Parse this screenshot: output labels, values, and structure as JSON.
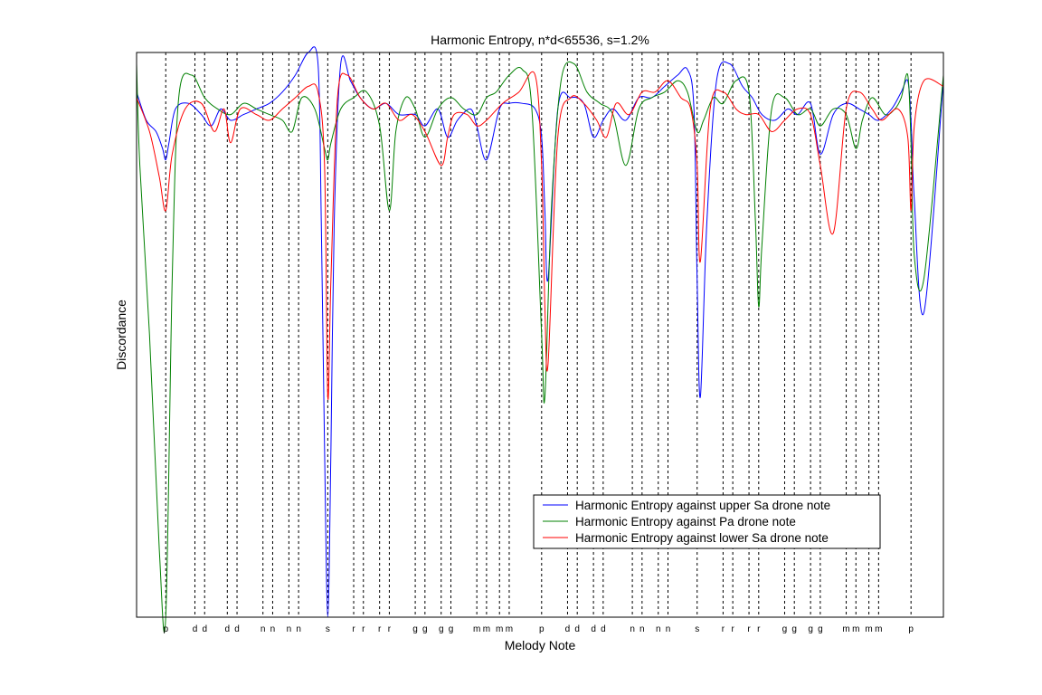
{
  "chart_data": {
    "type": "line",
    "title": "Harmonic Entropy, n*d<65536, s=1.2%",
    "xlabel": "Melody Note",
    "ylabel": "Discordance",
    "grid": "dashed vertical lines at each melody note position",
    "legend_position": "lower-right",
    "note_labels": [
      "p",
      "d",
      "d",
      "d",
      "d",
      "n",
      "n",
      "n",
      "n",
      "s",
      "r",
      "r",
      "r",
      "r",
      "g",
      "g",
      "g",
      "g",
      "m",
      "m",
      "m",
      "m",
      "p",
      "d",
      "d",
      "d",
      "d",
      "n",
      "n",
      "n",
      "n",
      "s",
      "r",
      "r",
      "r",
      "r",
      "g",
      "g",
      "g",
      "g",
      "m",
      "m",
      "m",
      "m",
      "p"
    ],
    "note_positions": [
      2.0,
      2.45,
      2.6,
      2.95,
      3.1,
      3.5,
      3.65,
      3.9,
      4.05,
      4.5,
      4.9,
      5.05,
      5.3,
      5.45,
      5.85,
      6.0,
      6.25,
      6.4,
      6.8,
      6.95,
      7.15,
      7.3,
      7.8,
      8.2,
      8.35,
      8.6,
      8.75,
      9.2,
      9.35,
      9.6,
      9.75,
      10.2,
      10.6,
      10.75,
      11.0,
      11.15,
      11.55,
      11.7,
      11.95,
      12.1,
      12.5,
      12.65,
      12.85,
      13.0,
      13.5
    ],
    "xlim": [
      1.55,
      14.0
    ],
    "ylim": [
      0,
      1
    ],
    "series": [
      {
        "name": "Harmonic Entropy against upper Sa drone note",
        "color": "#0000ff",
        "x": [
          1.55,
          1.7,
          1.85,
          1.95,
          2.0,
          2.05,
          2.15,
          2.35,
          2.55,
          2.7,
          2.85,
          3.0,
          3.2,
          3.4,
          3.6,
          3.8,
          4.0,
          4.2,
          4.35,
          4.4,
          4.45,
          4.5,
          4.55,
          4.6,
          4.7,
          4.85,
          5.0,
          5.2,
          5.4,
          5.6,
          5.85,
          6.0,
          6.2,
          6.35,
          6.5,
          6.7,
          6.8,
          6.95,
          7.15,
          7.3,
          7.5,
          7.7,
          7.8,
          7.85,
          7.9,
          8.05,
          8.25,
          8.45,
          8.6,
          8.75,
          8.9,
          9.1,
          9.3,
          9.5,
          9.7,
          9.9,
          10.05,
          10.15,
          10.2,
          10.25,
          10.35,
          10.5,
          10.7,
          10.9,
          11.05,
          11.2,
          11.4,
          11.6,
          11.75,
          11.95,
          12.1,
          12.3,
          12.5,
          12.7,
          12.85,
          13.0,
          13.2,
          13.35,
          13.45,
          13.5,
          13.55,
          13.7,
          14.0
        ],
        "y": [
          0.93,
          0.88,
          0.86,
          0.83,
          0.81,
          0.84,
          0.9,
          0.91,
          0.89,
          0.87,
          0.9,
          0.88,
          0.89,
          0.9,
          0.91,
          0.93,
          0.96,
          1.0,
          0.98,
          0.7,
          0.3,
          0.0,
          0.3,
          0.7,
          0.98,
          0.95,
          0.92,
          0.9,
          0.91,
          0.89,
          0.89,
          0.87,
          0.9,
          0.85,
          0.88,
          0.9,
          0.87,
          0.81,
          0.9,
          0.91,
          0.91,
          0.9,
          0.85,
          0.72,
          0.6,
          0.9,
          0.92,
          0.91,
          0.85,
          0.88,
          0.9,
          0.88,
          0.92,
          0.92,
          0.94,
          0.96,
          0.97,
          0.9,
          0.6,
          0.39,
          0.7,
          0.95,
          0.98,
          0.94,
          0.92,
          0.89,
          0.88,
          0.9,
          0.89,
          0.91,
          0.82,
          0.89,
          0.91,
          0.9,
          0.89,
          0.88,
          0.9,
          0.93,
          0.95,
          0.88,
          0.74,
          0.54,
          0.95
        ]
      },
      {
        "name": "Harmonic Entropy against Pa drone note",
        "color": "#008000",
        "x": [
          1.55,
          1.6,
          1.75,
          1.9,
          2.0,
          2.1,
          2.2,
          2.4,
          2.6,
          2.8,
          3.0,
          3.2,
          3.4,
          3.6,
          3.8,
          3.95,
          4.1,
          4.3,
          4.45,
          4.5,
          4.55,
          4.7,
          4.9,
          5.1,
          5.3,
          5.45,
          5.55,
          5.7,
          5.85,
          6.0,
          6.2,
          6.4,
          6.6,
          6.8,
          6.95,
          7.1,
          7.3,
          7.5,
          7.65,
          7.8,
          7.85,
          7.95,
          8.1,
          8.3,
          8.5,
          8.7,
          8.9,
          9.1,
          9.3,
          9.5,
          9.7,
          9.9,
          10.05,
          10.2,
          10.3,
          10.45,
          10.6,
          10.8,
          11.0,
          11.1,
          11.15,
          11.2,
          11.35,
          11.55,
          11.75,
          11.95,
          12.1,
          12.3,
          12.5,
          12.65,
          12.75,
          12.9,
          13.1,
          13.25,
          13.35,
          13.45,
          13.5,
          13.55,
          13.7,
          14.0
        ],
        "y": [
          0.98,
          0.8,
          0.5,
          0.12,
          0.0,
          0.6,
          0.92,
          0.96,
          0.92,
          0.9,
          0.89,
          0.91,
          0.9,
          0.89,
          0.88,
          0.86,
          0.92,
          0.9,
          0.83,
          0.81,
          0.84,
          0.9,
          0.92,
          0.93,
          0.87,
          0.72,
          0.86,
          0.92,
          0.9,
          0.85,
          0.9,
          0.92,
          0.9,
          0.89,
          0.92,
          0.93,
          0.96,
          0.97,
          0.9,
          0.5,
          0.39,
          0.72,
          0.95,
          0.98,
          0.93,
          0.91,
          0.89,
          0.8,
          0.9,
          0.92,
          0.93,
          0.95,
          0.93,
          0.86,
          0.88,
          0.92,
          0.91,
          0.95,
          0.93,
          0.7,
          0.55,
          0.66,
          0.9,
          0.92,
          0.89,
          0.9,
          0.87,
          0.9,
          0.89,
          0.83,
          0.88,
          0.92,
          0.89,
          0.9,
          0.92,
          0.96,
          0.84,
          0.64,
          0.6,
          0.96
        ]
      },
      {
        "name": "Harmonic Entropy against lower Sa drone note",
        "color": "#ff0000",
        "x": [
          1.55,
          1.75,
          1.9,
          2.0,
          2.1,
          2.3,
          2.55,
          2.75,
          2.9,
          3.0,
          3.15,
          3.4,
          3.6,
          3.8,
          4.0,
          4.2,
          4.35,
          4.45,
          4.5,
          4.55,
          4.65,
          4.8,
          5.0,
          5.2,
          5.4,
          5.6,
          5.8,
          6.0,
          6.25,
          6.35,
          6.45,
          6.65,
          6.8,
          6.95,
          7.2,
          7.45,
          7.7,
          7.8,
          7.85,
          7.9,
          8.05,
          8.25,
          8.45,
          8.65,
          8.8,
          8.95,
          9.15,
          9.35,
          9.55,
          9.75,
          9.95,
          10.1,
          10.2,
          10.25,
          10.4,
          10.6,
          10.8,
          10.95,
          11.15,
          11.35,
          11.55,
          11.75,
          11.95,
          12.1,
          12.3,
          12.5,
          12.7,
          12.9,
          13.05,
          13.3,
          13.45,
          13.5,
          13.55,
          13.7,
          14.0
        ],
        "y": [
          0.92,
          0.86,
          0.78,
          0.72,
          0.82,
          0.9,
          0.91,
          0.86,
          0.9,
          0.84,
          0.9,
          0.89,
          0.88,
          0.9,
          0.92,
          0.94,
          0.93,
          0.8,
          0.39,
          0.6,
          0.92,
          0.96,
          0.92,
          0.9,
          0.91,
          0.88,
          0.89,
          0.86,
          0.8,
          0.85,
          0.89,
          0.89,
          0.87,
          0.88,
          0.91,
          0.93,
          0.96,
          0.8,
          0.55,
          0.45,
          0.85,
          0.92,
          0.91,
          0.88,
          0.85,
          0.91,
          0.89,
          0.93,
          0.93,
          0.95,
          0.92,
          0.9,
          0.8,
          0.63,
          0.9,
          0.93,
          0.9,
          0.89,
          0.89,
          0.86,
          0.88,
          0.9,
          0.89,
          0.8,
          0.68,
          0.9,
          0.93,
          0.9,
          0.88,
          0.9,
          0.85,
          0.72,
          0.87,
          0.95,
          0.94
        ]
      }
    ]
  }
}
